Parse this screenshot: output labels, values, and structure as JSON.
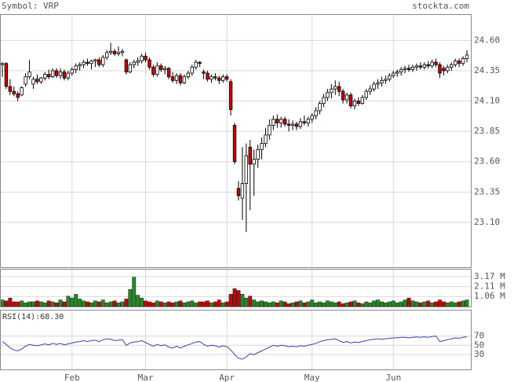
{
  "chart_data": [
    {
      "type": "candlestick",
      "title": "Symbol: VRP",
      "source": "stockta.com",
      "up_color": "#ffffff",
      "down_color": "#cc0000",
      "grid": true,
      "ylim": [
        22.73,
        24.81
      ],
      "yticks": [
        {
          "value": 24.6,
          "label": "24.60"
        },
        24.35,
        {
          "value": 24.1,
          "label": "24.10"
        },
        23.85,
        {
          "value": 23.6,
          "label": "23.60"
        },
        23.35,
        {
          "value": 23.1,
          "label": "23.10"
        }
      ],
      "ohlc": [
        [
          24.4,
          24.42,
          24.3,
          24.41
        ],
        [
          24.41,
          24.42,
          24.2,
          24.22
        ],
        [
          24.22,
          24.28,
          24.15,
          24.18
        ],
        [
          24.18,
          24.22,
          24.14,
          24.16
        ],
        [
          24.16,
          24.18,
          24.1,
          24.13
        ],
        [
          24.15,
          24.22,
          24.14,
          24.21
        ],
        [
          24.24,
          24.33,
          24.22,
          24.3
        ],
        [
          24.3,
          24.44,
          24.28,
          24.34
        ],
        [
          24.24,
          24.3,
          24.2,
          24.28
        ],
        [
          24.28,
          24.32,
          24.24,
          24.26
        ],
        [
          24.26,
          24.3,
          24.24,
          24.29
        ],
        [
          24.29,
          24.34,
          24.27,
          24.32
        ],
        [
          24.32,
          24.36,
          24.28,
          24.3
        ],
        [
          24.3,
          24.37,
          24.29,
          24.35
        ],
        [
          24.35,
          24.37,
          24.29,
          24.31
        ],
        [
          24.31,
          24.37,
          24.28,
          24.34
        ],
        [
          24.34,
          24.36,
          24.27,
          24.29
        ],
        [
          24.29,
          24.35,
          24.27,
          24.33
        ],
        [
          24.33,
          24.38,
          24.31,
          24.36
        ],
        [
          24.36,
          24.41,
          24.33,
          24.39
        ],
        [
          24.39,
          24.42,
          24.35,
          24.4
        ],
        [
          24.4,
          24.44,
          24.37,
          24.42
        ],
        [
          24.42,
          24.45,
          24.39,
          24.41
        ],
        [
          24.41,
          24.44,
          24.36,
          24.43
        ],
        [
          24.43,
          24.45,
          24.38,
          24.44
        ],
        [
          24.44,
          24.46,
          24.38,
          24.4
        ],
        [
          24.4,
          24.48,
          24.38,
          24.46
        ],
        [
          24.46,
          24.52,
          24.44,
          24.5
        ],
        [
          24.5,
          24.58,
          24.48,
          24.51
        ],
        [
          24.51,
          24.53,
          24.47,
          24.49
        ],
        [
          24.49,
          24.55,
          24.47,
          24.5
        ],
        [
          24.5,
          24.53,
          24.47,
          24.51
        ],
        [
          24.44,
          24.45,
          24.32,
          24.34
        ],
        [
          24.34,
          24.42,
          24.33,
          24.4
        ],
        [
          24.4,
          24.44,
          24.37,
          24.42
        ],
        [
          24.42,
          24.46,
          24.39,
          24.43
        ],
        [
          24.43,
          24.49,
          24.41,
          24.47
        ],
        [
          24.47,
          24.5,
          24.42,
          24.44
        ],
        [
          24.44,
          24.46,
          24.36,
          24.38
        ],
        [
          24.38,
          24.4,
          24.3,
          24.32
        ],
        [
          24.32,
          24.42,
          24.3,
          24.39
        ],
        [
          24.39,
          24.41,
          24.34,
          24.36
        ],
        [
          24.36,
          24.39,
          24.32,
          24.37
        ],
        [
          24.37,
          24.38,
          24.28,
          24.3
        ],
        [
          24.3,
          24.34,
          24.25,
          24.27
        ],
        [
          24.27,
          24.33,
          24.24,
          24.31
        ],
        [
          24.31,
          24.33,
          24.23,
          24.25
        ],
        [
          24.25,
          24.32,
          24.24,
          24.3
        ],
        [
          24.3,
          24.35,
          24.28,
          24.33
        ],
        [
          24.33,
          24.4,
          24.31,
          24.38
        ],
        [
          24.38,
          24.44,
          24.36,
          24.42
        ],
        [
          24.42,
          24.43,
          24.38,
          24.41
        ],
        [
          24.34,
          24.36,
          24.28,
          24.33
        ],
        [
          24.33,
          24.35,
          24.26,
          24.28
        ],
        [
          24.28,
          24.32,
          24.25,
          24.3
        ],
        [
          24.3,
          24.33,
          24.27,
          24.29
        ],
        [
          24.29,
          24.31,
          24.24,
          24.27
        ],
        [
          24.27,
          24.32,
          24.25,
          24.3
        ],
        [
          24.3,
          24.32,
          24.26,
          24.28
        ],
        [
          24.26,
          24.28,
          23.98,
          24.03
        ],
        [
          23.9,
          23.92,
          23.58,
          23.6
        ],
        [
          23.38,
          23.44,
          23.28,
          23.32
        ],
        [
          23.3,
          23.72,
          23.12,
          23.42
        ],
        [
          23.42,
          23.75,
          23.02,
          23.65
        ],
        [
          23.72,
          23.78,
          23.2,
          23.58
        ],
        [
          23.58,
          23.7,
          23.32,
          23.62
        ],
        [
          23.62,
          23.74,
          23.55,
          23.7
        ],
        [
          23.7,
          23.8,
          23.62,
          23.75
        ],
        [
          23.75,
          23.88,
          23.72,
          23.82
        ],
        [
          23.82,
          23.95,
          23.78,
          23.9
        ],
        [
          23.9,
          23.98,
          23.86,
          23.95
        ],
        [
          23.95,
          23.99,
          23.88,
          23.92
        ],
        [
          23.92,
          23.97,
          23.88,
          23.95
        ],
        [
          23.95,
          23.97,
          23.89,
          23.91
        ],
        [
          23.91,
          23.95,
          23.85,
          23.9
        ],
        [
          23.9,
          23.94,
          23.86,
          23.91
        ],
        [
          23.91,
          23.93,
          23.86,
          23.89
        ],
        [
          23.89,
          23.96,
          23.87,
          23.93
        ],
        [
          23.93,
          23.98,
          23.9,
          23.92
        ],
        [
          23.92,
          23.97,
          23.89,
          23.95
        ],
        [
          23.95,
          24.0,
          23.92,
          23.98
        ],
        [
          23.98,
          24.05,
          23.95,
          24.02
        ],
        [
          24.02,
          24.1,
          23.99,
          24.08
        ],
        [
          24.08,
          24.16,
          24.05,
          24.13
        ],
        [
          24.13,
          24.2,
          24.1,
          24.17
        ],
        [
          24.17,
          24.24,
          24.12,
          24.2
        ],
        [
          24.2,
          24.27,
          24.15,
          24.22
        ],
        [
          24.22,
          24.26,
          24.14,
          24.18
        ],
        [
          24.18,
          24.2,
          24.08,
          24.11
        ],
        [
          24.11,
          24.17,
          24.08,
          24.15
        ],
        [
          24.15,
          24.17,
          24.04,
          24.06
        ],
        [
          24.06,
          24.12,
          24.03,
          24.1
        ],
        [
          24.1,
          24.13,
          24.06,
          24.08
        ],
        [
          24.08,
          24.15,
          24.07,
          24.13
        ],
        [
          24.13,
          24.2,
          24.11,
          24.18
        ],
        [
          24.18,
          24.23,
          24.15,
          24.2
        ],
        [
          24.2,
          24.26,
          24.18,
          24.24
        ],
        [
          24.24,
          24.28,
          24.2,
          24.25
        ],
        [
          24.25,
          24.3,
          24.22,
          24.27
        ],
        [
          24.27,
          24.31,
          24.24,
          24.28
        ],
        [
          24.28,
          24.33,
          24.26,
          24.31
        ],
        [
          24.31,
          24.35,
          24.29,
          24.33
        ],
        [
          24.33,
          24.36,
          24.3,
          24.34
        ],
        [
          24.34,
          24.38,
          24.31,
          24.36
        ],
        [
          24.36,
          24.39,
          24.33,
          24.37
        ],
        [
          24.37,
          24.4,
          24.34,
          24.36
        ],
        [
          24.36,
          24.4,
          24.34,
          24.38
        ],
        [
          24.38,
          24.41,
          24.35,
          24.39
        ],
        [
          24.39,
          24.42,
          24.36,
          24.38
        ],
        [
          24.38,
          24.42,
          24.36,
          24.4
        ],
        [
          24.4,
          24.43,
          24.37,
          24.39
        ],
        [
          24.39,
          24.44,
          24.37,
          24.42
        ],
        [
          24.42,
          24.45,
          24.38,
          24.4
        ],
        [
          24.4,
          24.42,
          24.29,
          24.33
        ],
        [
          24.37,
          24.39,
          24.31,
          24.35
        ],
        [
          24.35,
          24.4,
          24.33,
          24.38
        ],
        [
          24.38,
          24.42,
          24.35,
          24.4
        ],
        [
          24.4,
          24.45,
          24.38,
          24.43
        ],
        [
          24.43,
          24.45,
          24.38,
          24.41
        ],
        [
          24.41,
          24.47,
          24.39,
          24.45
        ],
        [
          24.45,
          24.52,
          24.42,
          24.48
        ]
      ]
    },
    {
      "type": "bar",
      "up_color": "#228b22",
      "down_color": "#cc0000",
      "grid": true,
      "ylim": [
        0,
        3.9
      ],
      "yticks": [
        {
          "value": 3.17,
          "label": "3.17 M"
        },
        {
          "value": 2.11,
          "label": "2.11 M"
        },
        {
          "value": 1.06,
          "label": "1.06 M"
        }
      ],
      "values": [
        0.7,
        0.6,
        0.9,
        0.5,
        0.5,
        0.6,
        0.4,
        0.5,
        0.5,
        0.6,
        0.5,
        0.4,
        0.6,
        0.5,
        0.4,
        0.7,
        0.5,
        1.1,
        0.9,
        1.3,
        0.8,
        0.6,
        0.5,
        0.4,
        0.6,
        0.5,
        0.7,
        0.4,
        0.5,
        0.6,
        0.4,
        0.5,
        0.8,
        1.8,
        3.1,
        1.2,
        0.9,
        0.6,
        0.5,
        0.4,
        0.6,
        0.5,
        0.4,
        0.5,
        0.4,
        0.5,
        0.6,
        0.4,
        0.5,
        0.6,
        0.4,
        0.5,
        0.5,
        0.6,
        0.4,
        0.5,
        0.7,
        0.4,
        0.5,
        1.3,
        1.9,
        1.7,
        1.3,
        0.9,
        1.1,
        0.7,
        0.5,
        0.6,
        0.5,
        0.4,
        0.5,
        0.4,
        0.6,
        0.5,
        0.3,
        0.4,
        0.5,
        0.6,
        0.4,
        0.5,
        0.7,
        0.4,
        0.5,
        0.4,
        0.6,
        0.5,
        0.4,
        0.5,
        0.3,
        0.4,
        0.5,
        0.6,
        0.4,
        0.3,
        0.5,
        0.4,
        0.6,
        0.7,
        0.5,
        0.4,
        0.5,
        0.6,
        0.4,
        0.5,
        0.7,
        0.9,
        0.6,
        0.5,
        0.4,
        0.5,
        0.6,
        0.4,
        0.5,
        0.7,
        0.5,
        0.4,
        0.5,
        0.4,
        0.5,
        0.6,
        0.7
      ]
    },
    {
      "type": "line",
      "title": "RSI(14):68.30",
      "color": "#3344aa",
      "grid": true,
      "ylim": [
        -2,
        125
      ],
      "yticks": [
        70,
        50,
        30
      ],
      "categories": [
        null,
        null,
        null,
        null,
        null,
        null,
        null,
        null,
        null,
        null,
        null,
        null,
        null,
        null,
        null,
        null,
        null,
        null,
        "Feb",
        null,
        null,
        null,
        null,
        null,
        null,
        null,
        null,
        null,
        null,
        null,
        null,
        null,
        null,
        null,
        null,
        null,
        null,
        "Mar",
        null,
        null,
        null,
        null,
        null,
        null,
        null,
        null,
        null,
        null,
        null,
        null,
        null,
        null,
        null,
        null,
        null,
        null,
        null,
        null,
        "Apr",
        null,
        null,
        null,
        null,
        null,
        null,
        null,
        null,
        null,
        null,
        null,
        null,
        null,
        null,
        null,
        null,
        null,
        null,
        null,
        null,
        null,
        "May",
        null,
        null,
        null,
        null,
        null,
        null,
        null,
        null,
        null,
        null,
        null,
        null,
        null,
        null,
        null,
        null,
        null,
        null,
        null,
        null,
        "Jun",
        null,
        null,
        null,
        null,
        null,
        null,
        null,
        null,
        null,
        null,
        null,
        null,
        null,
        null,
        null,
        null,
        null,
        null,
        null
      ],
      "values": [
        58,
        52,
        44,
        40,
        38,
        42,
        48,
        52,
        50,
        49,
        51,
        53,
        51,
        54,
        52,
        54,
        51,
        53,
        55,
        57,
        58,
        60,
        58,
        60,
        61,
        58,
        62,
        64,
        63,
        60,
        61,
        62,
        50,
        55,
        57,
        58,
        60,
        56,
        52,
        48,
        52,
        49,
        51,
        46,
        44,
        48,
        44,
        48,
        51,
        54,
        57,
        58,
        52,
        48,
        50,
        49,
        46,
        49,
        47,
        40,
        30,
        22,
        20,
        25,
        32,
        30,
        34,
        38,
        42,
        46,
        50,
        48,
        50,
        49,
        47,
        48,
        47,
        49,
        48,
        50,
        52,
        54,
        58,
        60,
        62,
        63,
        64,
        60,
        56,
        58,
        55,
        57,
        56,
        58,
        60,
        62,
        63,
        64,
        63,
        64,
        65,
        66,
        66,
        67,
        67,
        66,
        67,
        68,
        67,
        68,
        67,
        69,
        70,
        58,
        60,
        62,
        64,
        66,
        65,
        67,
        68.3
      ]
    }
  ]
}
